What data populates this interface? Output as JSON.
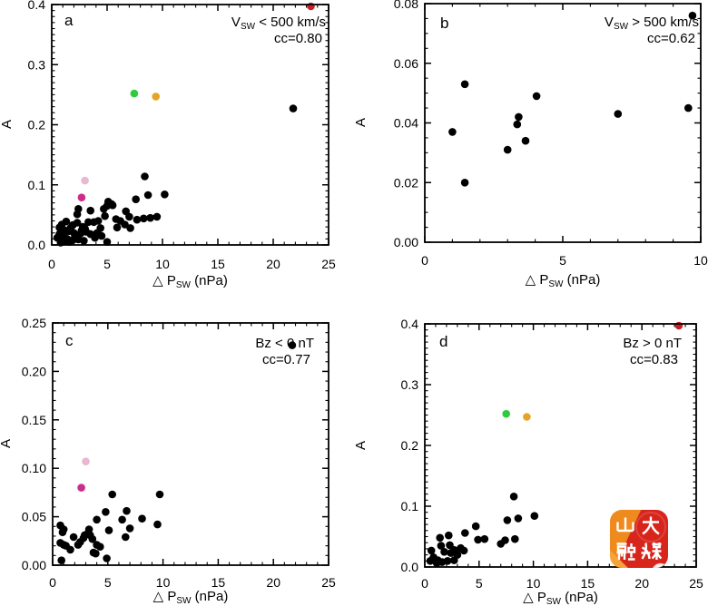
{
  "figure": {
    "background": "#ffffff",
    "point_color": "#000000",
    "watermark": {
      "line1": "山大",
      "line2": "融媒",
      "full_text": "山大融媒",
      "bg_orange": "#ef8a1e",
      "bg_red": "#d8251c",
      "accent_light": "#f6a33a",
      "text_color": "#ffffff"
    }
  },
  "chart_data": [
    {
      "id": "a",
      "type": "scatter",
      "panel_label": "a",
      "annotation": {
        "line1_pre": "V",
        "line1_sub": "SW",
        "line1_post": " < 500 km/s",
        "line2": "cc=0.80"
      },
      "xlabel": {
        "pre": "△ P",
        "sub": "SW",
        "post": "  (nPa)"
      },
      "ylabel": "A",
      "xlim": [
        0,
        25
      ],
      "ylim": [
        0,
        0.4
      ],
      "xticks": [
        0,
        5,
        10,
        15,
        20,
        25
      ],
      "xtick_labels": [
        "0",
        "5",
        "10",
        "15",
        "20",
        "25"
      ],
      "yticks": [
        0,
        0.1,
        0.2,
        0.3,
        0.4
      ],
      "ytick_labels": [
        "0.0",
        "0.1",
        "0.2",
        "0.3",
        "0.4"
      ],
      "x_minor_step": 1,
      "y_minor_step": 0.01,
      "grid": false,
      "legend": false,
      "series": [
        {
          "name": "events-black",
          "color": "#000000",
          "points": [
            [
              21.8,
              0.227
            ],
            [
              8.4,
              0.114
            ],
            [
              10.2,
              0.084
            ],
            [
              8.7,
              0.083
            ],
            [
              7.6,
              0.076
            ],
            [
              5.1,
              0.072
            ],
            [
              5.4,
              0.068
            ],
            [
              5.5,
              0.066
            ],
            [
              5.0,
              0.065
            ],
            [
              4.7,
              0.06
            ],
            [
              2.4,
              0.06
            ],
            [
              3.5,
              0.057
            ],
            [
              6.7,
              0.056
            ],
            [
              2.3,
              0.051
            ],
            [
              9.5,
              0.047
            ],
            [
              7.0,
              0.047
            ],
            [
              4.8,
              0.048
            ],
            [
              8.9,
              0.045
            ],
            [
              8.3,
              0.044
            ],
            [
              5.8,
              0.043
            ],
            [
              7.7,
              0.042
            ],
            [
              4.2,
              0.04
            ],
            [
              6.2,
              0.04
            ],
            [
              3.8,
              0.038
            ],
            [
              1.3,
              0.039
            ],
            [
              2.3,
              0.037
            ],
            [
              3.3,
              0.038
            ],
            [
              6.6,
              0.034
            ],
            [
              0.9,
              0.034
            ],
            [
              1.9,
              0.033
            ],
            [
              2.8,
              0.03
            ],
            [
              5.9,
              0.029
            ],
            [
              7.1,
              0.028
            ],
            [
              0.7,
              0.029
            ],
            [
              3.0,
              0.027
            ],
            [
              1.7,
              0.028
            ],
            [
              4.4,
              0.028
            ],
            [
              1.1,
              0.025
            ],
            [
              2.7,
              0.024
            ],
            [
              1.5,
              0.023
            ],
            [
              3.1,
              0.022
            ],
            [
              2.0,
              0.02
            ],
            [
              4.1,
              0.02
            ],
            [
              2.6,
              0.019
            ],
            [
              3.5,
              0.018
            ],
            [
              4.5,
              0.015
            ],
            [
              0.7,
              0.018
            ],
            [
              1.1,
              0.014
            ],
            [
              2.1,
              0.013
            ],
            [
              0.5,
              0.012
            ],
            [
              3.9,
              0.012
            ],
            [
              1.4,
              0.01
            ],
            [
              0.9,
              0.009
            ],
            [
              2.4,
              0.009
            ],
            [
              1.9,
              0.008
            ],
            [
              2.9,
              0.007
            ],
            [
              1.2,
              0.006
            ],
            [
              1.6,
              0.005
            ],
            [
              5.0,
              0.005
            ],
            [
              0.8,
              0.004
            ]
          ]
        },
        {
          "name": "event-magenta",
          "color": "#cb2d8b",
          "points": [
            [
              2.7,
              0.079
            ]
          ]
        },
        {
          "name": "event-pink",
          "color": "#e8b7d2",
          "points": [
            [
              3.0,
              0.107
            ]
          ]
        },
        {
          "name": "event-green",
          "color": "#2ecc3d",
          "points": [
            [
              7.45,
              0.252
            ]
          ]
        },
        {
          "name": "event-orange",
          "color": "#e5a424",
          "points": [
            [
              9.4,
              0.247
            ]
          ]
        },
        {
          "name": "event-red",
          "color": "#c92027",
          "points": [
            [
              23.4,
              0.397
            ]
          ]
        }
      ]
    },
    {
      "id": "b",
      "type": "scatter",
      "panel_label": "b",
      "annotation": {
        "line1_pre": "V",
        "line1_sub": "SW",
        "line1_post": " > 500 km/s",
        "line2": "cc=0.62"
      },
      "xlabel": {
        "pre": "△ P",
        "sub": "SW",
        "post": "  (nPa)"
      },
      "ylabel": "A",
      "xlim": [
        0,
        10
      ],
      "ylim": [
        0,
        0.08
      ],
      "xticks": [
        0,
        5,
        10
      ],
      "xtick_labels": [
        "0",
        "5",
        "10"
      ],
      "yticks": [
        0,
        0.02,
        0.04,
        0.06,
        0.08
      ],
      "ytick_labels": [
        "0.00",
        "0.02",
        "0.04",
        "0.06",
        "0.08"
      ],
      "x_minor_step": 1,
      "y_minor_step": 0.005,
      "grid": false,
      "legend": false,
      "series": [
        {
          "name": "events-black",
          "color": "#000000",
          "points": [
            [
              1.0,
              0.037
            ],
            [
              1.45,
              0.053
            ],
            [
              1.45,
              0.02
            ],
            [
              3.0,
              0.031
            ],
            [
              3.35,
              0.0395
            ],
            [
              3.4,
              0.042
            ],
            [
              3.65,
              0.034
            ],
            [
              4.05,
              0.049
            ],
            [
              7.0,
              0.043
            ],
            [
              9.55,
              0.045
            ],
            [
              9.7,
              0.076
            ]
          ]
        }
      ]
    },
    {
      "id": "c",
      "type": "scatter",
      "panel_label": "c",
      "annotation": {
        "line1_pre": "Bz",
        "line1_sub": "",
        "line1_post": " < 0 nT",
        "line2": "cc=0.77"
      },
      "xlabel": {
        "pre": "△ P",
        "sub": "SW",
        "post": "  (nPa)"
      },
      "ylabel": "A",
      "xlim": [
        0,
        25
      ],
      "ylim": [
        0,
        0.25
      ],
      "xticks": [
        0,
        5,
        10,
        15,
        20,
        25
      ],
      "xtick_labels": [
        "0",
        "5",
        "10",
        "15",
        "20",
        "25"
      ],
      "yticks": [
        0,
        0.05,
        0.1,
        0.15,
        0.2,
        0.25
      ],
      "ytick_labels": [
        "0.00",
        "0.05",
        "0.10",
        "0.15",
        "0.20",
        "0.25"
      ],
      "x_minor_step": 1,
      "y_minor_step": 0.01,
      "grid": false,
      "legend": false,
      "series": [
        {
          "name": "events-black",
          "color": "#000000",
          "points": [
            [
              21.7,
              0.227
            ],
            [
              9.7,
              0.073
            ],
            [
              5.4,
              0.073
            ],
            [
              6.7,
              0.056
            ],
            [
              4.8,
              0.055
            ],
            [
              4.0,
              0.047
            ],
            [
              6.3,
              0.047
            ],
            [
              8.1,
              0.048
            ],
            [
              9.5,
              0.042
            ],
            [
              7.0,
              0.038
            ],
            [
              0.7,
              0.041
            ],
            [
              1.0,
              0.037
            ],
            [
              0.9,
              0.034
            ],
            [
              3.3,
              0.037
            ],
            [
              3.2,
              0.033
            ],
            [
              3.4,
              0.031
            ],
            [
              5.1,
              0.036
            ],
            [
              6.6,
              0.029
            ],
            [
              1.9,
              0.029
            ],
            [
              2.8,
              0.028
            ],
            [
              3.6,
              0.027
            ],
            [
              2.5,
              0.024
            ],
            [
              2.9,
              0.031
            ],
            [
              0.7,
              0.023
            ],
            [
              1.0,
              0.021
            ],
            [
              1.2,
              0.02
            ],
            [
              2.3,
              0.021
            ],
            [
              4.0,
              0.021
            ],
            [
              4.3,
              0.019
            ],
            [
              1.6,
              0.016
            ],
            [
              3.7,
              0.013
            ],
            [
              3.9,
              0.012
            ],
            [
              4.9,
              0.007
            ],
            [
              0.8,
              0.005
            ]
          ]
        },
        {
          "name": "event-magenta",
          "color": "#cb2d8b",
          "points": [
            [
              2.6,
              0.08
            ]
          ]
        },
        {
          "name": "event-pink",
          "color": "#e8b7d2",
          "points": [
            [
              3.0,
              0.107
            ]
          ]
        }
      ]
    },
    {
      "id": "d",
      "type": "scatter",
      "panel_label": "d",
      "annotation": {
        "line1_pre": "Bz",
        "line1_sub": "",
        "line1_post": " > 0 nT",
        "line2": "cc=0.83"
      },
      "xlabel": {
        "pre": "△ P",
        "sub": "SW",
        "post": "  (nPa)"
      },
      "ylabel": "A",
      "xlim": [
        0,
        25
      ],
      "ylim": [
        0,
        0.4
      ],
      "xticks": [
        0,
        5,
        10,
        15,
        20,
        25
      ],
      "xtick_labels": [
        "0",
        "5",
        "10",
        "15",
        "20",
        "25"
      ],
      "yticks": [
        0,
        0.1,
        0.2,
        0.3,
        0.4
      ],
      "ytick_labels": [
        "0.0",
        "0.1",
        "0.2",
        "0.3",
        "0.4"
      ],
      "x_minor_step": 1,
      "y_minor_step": 0.01,
      "grid": false,
      "legend": false,
      "series": [
        {
          "name": "events-black",
          "color": "#000000",
          "points": [
            [
              8.2,
              0.116
            ],
            [
              10.1,
              0.084
            ],
            [
              8.6,
              0.08
            ],
            [
              7.6,
              0.077
            ],
            [
              4.7,
              0.067
            ],
            [
              3.7,
              0.056
            ],
            [
              2.2,
              0.052
            ],
            [
              1.4,
              0.048
            ],
            [
              5.5,
              0.046
            ],
            [
              8.3,
              0.046
            ],
            [
              4.9,
              0.045
            ],
            [
              7.4,
              0.044
            ],
            [
              7.0,
              0.038
            ],
            [
              2.3,
              0.036
            ],
            [
              1.5,
              0.035
            ],
            [
              3.3,
              0.031
            ],
            [
              2.7,
              0.028
            ],
            [
              3.6,
              0.027
            ],
            [
              0.6,
              0.027
            ],
            [
              1.8,
              0.025
            ],
            [
              2.4,
              0.023
            ],
            [
              3.0,
              0.02
            ],
            [
              0.8,
              0.016
            ],
            [
              1.2,
              0.011
            ],
            [
              2.7,
              0.011
            ],
            [
              2.1,
              0.01
            ],
            [
              0.5,
              0.01
            ],
            [
              1.6,
              0.008
            ],
            [
              1.1,
              0.006
            ]
          ]
        },
        {
          "name": "event-green",
          "color": "#2ecc3d",
          "points": [
            [
              7.5,
              0.252
            ]
          ]
        },
        {
          "name": "event-orange",
          "color": "#e5a424",
          "points": [
            [
              9.4,
              0.247
            ]
          ]
        },
        {
          "name": "event-red",
          "color": "#c92027",
          "points": [
            [
              23.4,
              0.397
            ]
          ]
        }
      ]
    }
  ]
}
